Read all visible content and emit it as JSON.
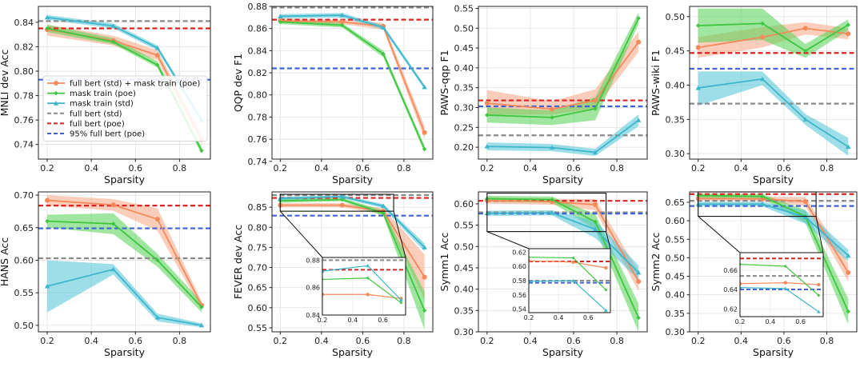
{
  "styles": {
    "series": {
      "combo": {
        "color": "#f4895b",
        "band": "#f6a582",
        "marker": "circle"
      },
      "mask_poe": {
        "color": "#3fc53f",
        "band": "#52d152",
        "marker": "diamond"
      },
      "mask_std": {
        "color": "#3db7cc",
        "band": "#4fc3d6",
        "marker": "triangle"
      }
    },
    "baselines": {
      "full_std": "#8a8a8a",
      "full_poe": "#dd2222",
      "pct95_poe": "#3f63d6"
    }
  },
  "legend": [
    {
      "key": "combo",
      "kind": "series",
      "label": "full bert (std) + mask train (poe)"
    },
    {
      "key": "mask_poe",
      "kind": "series",
      "label": "mask train (poe)"
    },
    {
      "key": "mask_std",
      "kind": "series",
      "label": "mask train (std)"
    },
    {
      "key": "full_std",
      "kind": "baseline",
      "label": "full bert (std)"
    },
    {
      "key": "full_poe",
      "kind": "baseline",
      "label": "full bert (poe)"
    },
    {
      "key": "pct95_poe",
      "kind": "baseline",
      "label": "95% full bert (poe)"
    }
  ],
  "chart_data": [
    {
      "id": "mnli",
      "type": "line",
      "ylabel": "MNLI dev Acc",
      "xlabel": "Sparsity",
      "x": [
        0.2,
        0.5,
        0.7,
        0.9
      ],
      "xlim": [
        0.16,
        0.94
      ],
      "ylim": [
        0.728,
        0.853
      ],
      "xticks": [
        0.2,
        0.4,
        0.6,
        0.8
      ],
      "yticks": [
        0.74,
        0.76,
        0.78,
        0.8,
        0.82,
        0.84
      ],
      "ydec": 2,
      "baselines": {
        "full_std": 0.841,
        "full_poe": 0.835,
        "pct95_poe": 0.793
      },
      "series": [
        {
          "key": "combo",
          "values": [
            0.834,
            0.825,
            0.813,
            0.744
          ],
          "lower": [
            0.829,
            0.821,
            0.809,
            0.741
          ],
          "upper": [
            0.838,
            0.829,
            0.817,
            0.748
          ]
        },
        {
          "key": "mask_poe",
          "values": [
            0.835,
            0.824,
            0.805,
            0.735
          ],
          "lower": [
            0.832,
            0.822,
            0.803,
            0.732
          ],
          "upper": [
            0.838,
            0.827,
            0.808,
            0.738
          ]
        },
        {
          "key": "mask_std",
          "values": [
            0.844,
            0.837,
            0.819,
            0.76
          ],
          "lower": [
            0.842,
            0.835,
            0.817,
            0.758
          ],
          "upper": [
            0.846,
            0.839,
            0.821,
            0.762
          ]
        }
      ],
      "legend": true
    },
    {
      "id": "qqp",
      "type": "line",
      "ylabel": "QQP dev F1",
      "xlabel": "Sparsity",
      "x": [
        0.2,
        0.5,
        0.7,
        0.9
      ],
      "xlim": [
        0.16,
        0.94
      ],
      "ylim": [
        0.742,
        0.88
      ],
      "xticks": [
        0.2,
        0.4,
        0.6,
        0.8
      ],
      "yticks": [
        0.74,
        0.76,
        0.78,
        0.8,
        0.82,
        0.84,
        0.86,
        0.88
      ],
      "ydec": 2,
      "baselines": {
        "full_std": 0.879,
        "full_poe": 0.868,
        "pct95_poe": 0.824
      },
      "series": [
        {
          "key": "combo",
          "values": [
            0.867,
            0.866,
            0.862,
            0.766
          ],
          "lower": [
            0.865,
            0.864,
            0.859,
            0.76
          ],
          "upper": [
            0.869,
            0.868,
            0.865,
            0.772
          ]
        },
        {
          "key": "mask_poe",
          "values": [
            0.866,
            0.863,
            0.837,
            0.751
          ],
          "lower": [
            0.864,
            0.861,
            0.834,
            0.748
          ],
          "upper": [
            0.868,
            0.865,
            0.84,
            0.754
          ]
        },
        {
          "key": "mask_std",
          "values": [
            0.871,
            0.872,
            0.861,
            0.807
          ],
          "lower": [
            0.869,
            0.87,
            0.859,
            0.805
          ],
          "upper": [
            0.873,
            0.874,
            0.863,
            0.809
          ]
        }
      ]
    },
    {
      "id": "paws_qqp",
      "type": "line",
      "ylabel": "PAWS-qqp F1",
      "xlabel": "Sparsity",
      "x": [
        0.2,
        0.5,
        0.7,
        0.9
      ],
      "xlim": [
        0.16,
        0.94
      ],
      "ylim": [
        0.17,
        0.555
      ],
      "xticks": [
        0.2,
        0.4,
        0.6,
        0.8
      ],
      "yticks": [
        0.2,
        0.25,
        0.3,
        0.35,
        0.4,
        0.45,
        0.5,
        0.55
      ],
      "ydec": 2,
      "baselines": {
        "full_std": 0.23,
        "full_poe": 0.318,
        "pct95_poe": 0.303
      },
      "series": [
        {
          "key": "combo",
          "values": [
            0.311,
            0.296,
            0.318,
            0.465
          ],
          "lower": [
            0.282,
            0.282,
            0.298,
            0.44
          ],
          "upper": [
            0.344,
            0.316,
            0.346,
            0.492
          ]
        },
        {
          "key": "mask_poe",
          "values": [
            0.281,
            0.275,
            0.297,
            0.525
          ],
          "lower": [
            0.262,
            0.256,
            0.268,
            0.51
          ],
          "upper": [
            0.3,
            0.293,
            0.326,
            0.54
          ]
        },
        {
          "key": "mask_std",
          "values": [
            0.202,
            0.199,
            0.187,
            0.268
          ],
          "lower": [
            0.192,
            0.19,
            0.178,
            0.253
          ],
          "upper": [
            0.212,
            0.208,
            0.196,
            0.283
          ]
        }
      ]
    },
    {
      "id": "paws_wiki",
      "type": "line",
      "ylabel": "PAWS-wiki F1",
      "xlabel": "Sparsity",
      "x": [
        0.2,
        0.5,
        0.7,
        0.9
      ],
      "xlim": [
        0.16,
        0.94
      ],
      "ylim": [
        0.292,
        0.515
      ],
      "xticks": [
        0.2,
        0.4,
        0.6,
        0.8
      ],
      "yticks": [
        0.3,
        0.35,
        0.4,
        0.45,
        0.5
      ],
      "ydec": 2,
      "baselines": {
        "full_std": 0.373,
        "full_poe": 0.447,
        "pct95_poe": 0.424
      },
      "series": [
        {
          "key": "combo",
          "values": [
            0.455,
            0.47,
            0.483,
            0.475
          ],
          "lower": [
            0.44,
            0.455,
            0.474,
            0.467
          ],
          "upper": [
            0.47,
            0.485,
            0.492,
            0.483
          ]
        },
        {
          "key": "mask_poe",
          "values": [
            0.487,
            0.49,
            0.45,
            0.488
          ],
          "lower": [
            0.462,
            0.466,
            0.44,
            0.48
          ],
          "upper": [
            0.512,
            0.512,
            0.46,
            0.496
          ]
        },
        {
          "key": "mask_std",
          "values": [
            0.396,
            0.409,
            0.35,
            0.31
          ],
          "lower": [
            0.37,
            0.4,
            0.342,
            0.297
          ],
          "upper": [
            0.42,
            0.42,
            0.358,
            0.323
          ]
        }
      ]
    },
    {
      "id": "hans",
      "type": "line",
      "ylabel": "HANS Acc",
      "xlabel": "Sparsity",
      "x": [
        0.2,
        0.5,
        0.7,
        0.9
      ],
      "xlim": [
        0.16,
        0.94
      ],
      "ylim": [
        0.49,
        0.705
      ],
      "xticks": [
        0.2,
        0.4,
        0.6,
        0.8
      ],
      "yticks": [
        0.5,
        0.55,
        0.6,
        0.65,
        0.7
      ],
      "ydec": 2,
      "baselines": {
        "full_std": 0.603,
        "full_poe": 0.684,
        "pct95_poe": 0.649
      },
      "series": [
        {
          "key": "combo",
          "values": [
            0.692,
            0.685,
            0.663,
            0.531
          ],
          "lower": [
            0.684,
            0.676,
            0.645,
            0.525
          ],
          "upper": [
            0.7,
            0.694,
            0.68,
            0.537
          ]
        },
        {
          "key": "mask_poe",
          "values": [
            0.66,
            0.656,
            0.6,
            0.528
          ],
          "lower": [
            0.65,
            0.64,
            0.59,
            0.52
          ],
          "upper": [
            0.67,
            0.672,
            0.61,
            0.536
          ]
        },
        {
          "key": "mask_std",
          "values": [
            0.56,
            0.586,
            0.512,
            0.5
          ],
          "lower": [
            0.52,
            0.578,
            0.506,
            0.497
          ],
          "upper": [
            0.6,
            0.594,
            0.518,
            0.503
          ]
        }
      ]
    },
    {
      "id": "fever",
      "type": "line",
      "ylabel": "FEVER dev Acc",
      "xlabel": "Sparsity",
      "x": [
        0.2,
        0.5,
        0.7,
        0.9
      ],
      "xlim": [
        0.16,
        0.94
      ],
      "ylim": [
        0.54,
        0.888
      ],
      "xticks": [
        0.2,
        0.4,
        0.6,
        0.8
      ],
      "yticks": [
        0.55,
        0.6,
        0.65,
        0.7,
        0.75,
        0.8,
        0.85
      ],
      "ydec": 2,
      "baselines": {
        "full_std": 0.88,
        "full_poe": 0.873,
        "pct95_poe": 0.829
      },
      "series": [
        {
          "key": "combo",
          "values": [
            0.855,
            0.855,
            0.84,
            0.676
          ],
          "lower": [
            0.85,
            0.85,
            0.832,
            0.62
          ],
          "upper": [
            0.86,
            0.86,
            0.848,
            0.732
          ]
        },
        {
          "key": "mask_poe",
          "values": [
            0.866,
            0.869,
            0.835,
            0.593
          ],
          "lower": [
            0.861,
            0.865,
            0.828,
            0.545
          ],
          "upper": [
            0.871,
            0.873,
            0.842,
            0.64
          ]
        },
        {
          "key": "mask_std",
          "values": [
            0.872,
            0.876,
            0.853,
            0.75
          ],
          "lower": [
            0.868,
            0.872,
            0.848,
            0.74
          ],
          "upper": [
            0.876,
            0.88,
            0.858,
            0.76
          ]
        }
      ],
      "inset": {
        "xlim": [
          0.2,
          0.75
        ],
        "ylim": [
          0.84,
          0.882
        ],
        "zoom_ylim": [
          0.84,
          0.882
        ],
        "xticks": [
          0.2,
          0.4,
          0.6
        ],
        "yticks": [
          0.84,
          0.86,
          0.88
        ],
        "ydec": 2,
        "x": [
          0.2,
          0.5,
          0.72
        ],
        "series": [
          {
            "key": "combo",
            "values": [
              0.855,
              0.855,
              0.852
            ]
          },
          {
            "key": "mask_poe",
            "values": [
              0.866,
              0.867,
              0.849
            ]
          },
          {
            "key": "mask_std",
            "values": [
              0.872,
              0.876,
              0.851
            ]
          }
        ]
      }
    },
    {
      "id": "symm1",
      "type": "line",
      "ylabel": "Symm1 Acc",
      "xlabel": "Sparsity",
      "x": [
        0.2,
        0.5,
        0.7,
        0.9
      ],
      "xlim": [
        0.16,
        0.94
      ],
      "ylim": [
        0.3,
        0.628
      ],
      "xticks": [
        0.2,
        0.4,
        0.6,
        0.8
      ],
      "yticks": [
        0.3,
        0.35,
        0.4,
        0.45,
        0.5,
        0.55,
        0.6
      ],
      "ydec": 2,
      "baselines": {
        "full_std": 0.58,
        "full_poe": 0.607,
        "pct95_poe": 0.577
      },
      "series": [
        {
          "key": "combo",
          "values": [
            0.608,
            0.605,
            0.598,
            0.418
          ],
          "lower": [
            0.601,
            0.598,
            0.585,
            0.395
          ],
          "upper": [
            0.615,
            0.612,
            0.611,
            0.442
          ]
        },
        {
          "key": "mask_poe",
          "values": [
            0.612,
            0.61,
            0.558,
            0.333
          ],
          "lower": [
            0.605,
            0.603,
            0.54,
            0.3
          ],
          "upper": [
            0.619,
            0.617,
            0.576,
            0.366
          ]
        },
        {
          "key": "mask_std",
          "values": [
            0.578,
            0.579,
            0.54,
            0.439
          ],
          "lower": [
            0.572,
            0.573,
            0.52,
            0.422
          ],
          "upper": [
            0.584,
            0.585,
            0.56,
            0.456
          ]
        }
      ],
      "inset": {
        "xlim": [
          0.2,
          0.75
        ],
        "ylim": [
          0.535,
          0.625
        ],
        "zoom_ylim": [
          0.535,
          0.625
        ],
        "xticks": [
          0.2,
          0.4,
          0.6
        ],
        "yticks": [
          0.54,
          0.56,
          0.58,
          0.6,
          0.62
        ],
        "ydec": 2,
        "x": [
          0.2,
          0.5,
          0.72
        ],
        "series": [
          {
            "key": "combo",
            "values": [
              0.608,
              0.606,
              0.598
            ]
          },
          {
            "key": "mask_poe",
            "values": [
              0.613,
              0.612,
              0.567
            ]
          },
          {
            "key": "mask_std",
            "values": [
              0.579,
              0.58,
              0.538
            ]
          }
        ]
      }
    },
    {
      "id": "symm2",
      "type": "line",
      "ylabel": "Symm2 Acc",
      "xlabel": "Sparsity",
      "x": [
        0.2,
        0.5,
        0.7,
        0.9
      ],
      "xlim": [
        0.16,
        0.94
      ],
      "ylim": [
        0.3,
        0.678
      ],
      "xticks": [
        0.2,
        0.4,
        0.6,
        0.8
      ],
      "yticks": [
        0.3,
        0.35,
        0.4,
        0.45,
        0.5,
        0.55,
        0.6,
        0.65
      ],
      "ydec": 2,
      "baselines": {
        "full_std": 0.654,
        "full_poe": 0.672,
        "pct95_poe": 0.64
      },
      "series": [
        {
          "key": "combo",
          "values": [
            0.66,
            0.659,
            0.652,
            0.46
          ],
          "lower": [
            0.654,
            0.653,
            0.64,
            0.435
          ],
          "upper": [
            0.666,
            0.665,
            0.664,
            0.485
          ]
        },
        {
          "key": "mask_poe",
          "values": [
            0.668,
            0.666,
            0.612,
            0.355
          ],
          "lower": [
            0.662,
            0.66,
            0.595,
            0.32
          ],
          "upper": [
            0.674,
            0.672,
            0.629,
            0.39
          ]
        },
        {
          "key": "mask_std",
          "values": [
            0.645,
            0.645,
            0.61,
            0.506
          ],
          "lower": [
            0.639,
            0.639,
            0.592,
            0.49
          ],
          "upper": [
            0.651,
            0.651,
            0.628,
            0.522
          ]
        }
      ],
      "inset": {
        "xlim": [
          0.2,
          0.75
        ],
        "ylim": [
          0.612,
          0.678
        ],
        "zoom_ylim": [
          0.612,
          0.678
        ],
        "xticks": [
          0.2,
          0.4,
          0.6
        ],
        "yticks": [
          0.62,
          0.64,
          0.66
        ],
        "ydec": 2,
        "x": [
          0.2,
          0.5,
          0.72
        ],
        "series": [
          {
            "key": "combo",
            "values": [
              0.646,
              0.647,
              0.645
            ]
          },
          {
            "key": "mask_poe",
            "values": [
              0.666,
              0.664,
              0.634
            ]
          },
          {
            "key": "mask_std",
            "values": [
              0.642,
              0.641,
              0.617
            ]
          }
        ]
      }
    }
  ]
}
